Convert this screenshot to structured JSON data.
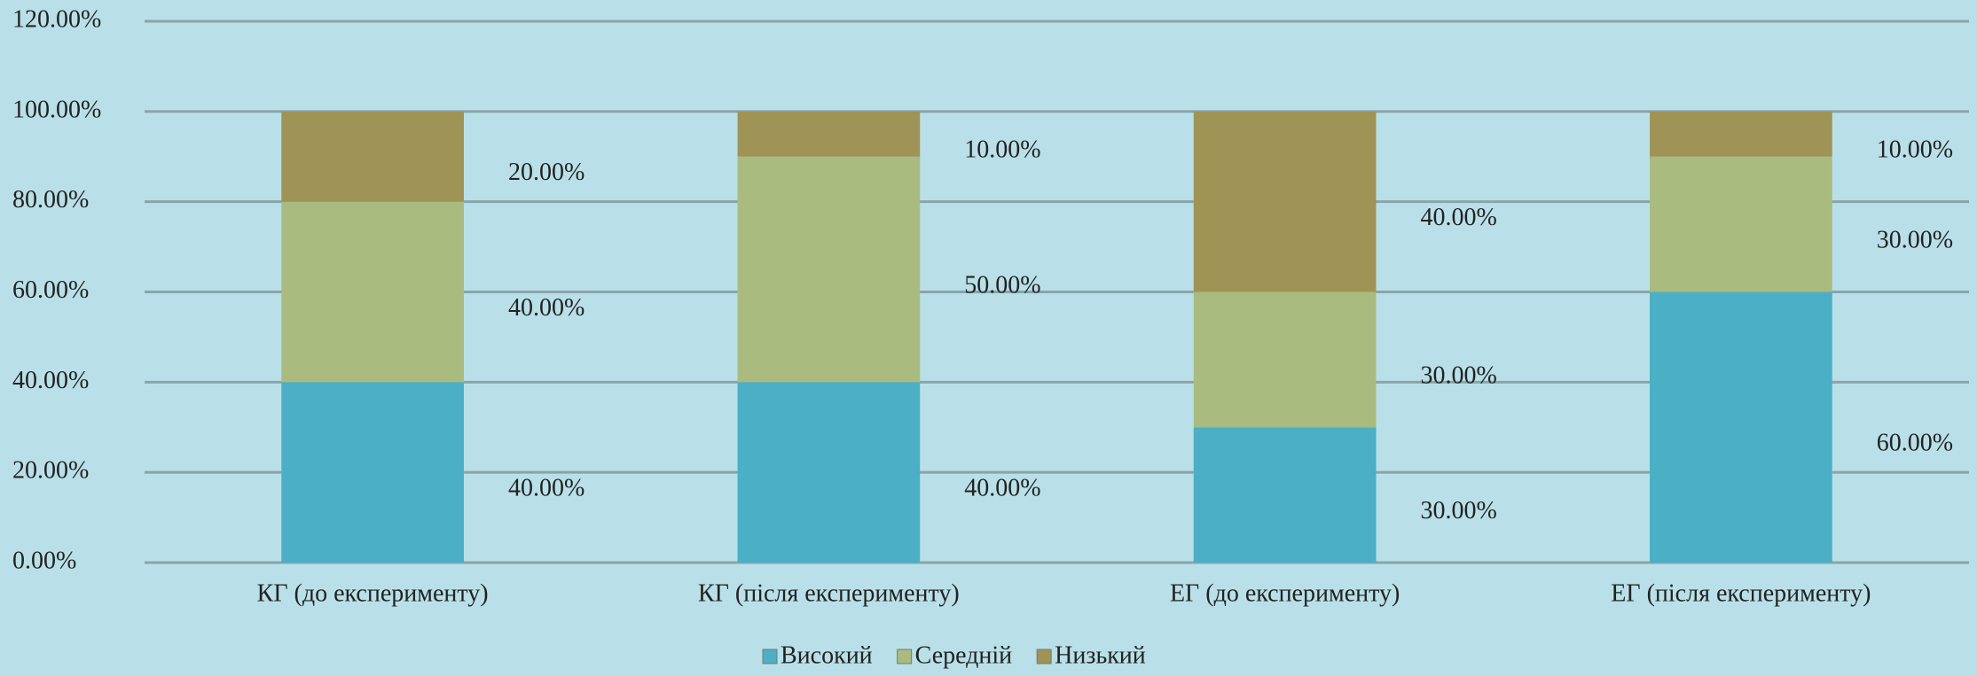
{
  "chart_data": {
    "type": "stacked_bar",
    "categories": [
      "КГ (до експерименту)",
      "КГ (після експерименту)",
      "ЕГ (до експерименту)",
      "ЕГ (після експерименту)"
    ],
    "series": [
      {
        "name": "Високий",
        "color": "#4bafc6",
        "values": [
          40,
          40,
          30,
          60
        ],
        "value_labels": [
          "40.00%",
          "40.00%",
          "30.00%",
          "60.00%"
        ]
      },
      {
        "name": "Середній",
        "color": "#a9bb7e",
        "values": [
          40,
          50,
          30,
          30
        ],
        "value_labels": [
          "40.00%",
          "50.00%",
          "30.00%",
          "30.00%"
        ]
      },
      {
        "name": "Низький",
        "color": "#9f9455",
        "values": [
          20,
          10,
          40,
          10
        ],
        "value_labels": [
          "20.00%",
          "10.00%",
          "40.00%",
          "10.00%"
        ]
      }
    ],
    "ylim": [
      0,
      120
    ],
    "yticks": [
      {
        "value": 0,
        "label": "0.00%"
      },
      {
        "value": 20,
        "label": "20.00%"
      },
      {
        "value": 40,
        "label": "40.00%"
      },
      {
        "value": 60,
        "label": "60.00%"
      },
      {
        "value": 80,
        "label": "80.00%"
      },
      {
        "value": 100,
        "label": "100.00%"
      },
      {
        "value": 120,
        "label": "120.00%"
      }
    ],
    "grid": true,
    "legend": "bottom"
  }
}
